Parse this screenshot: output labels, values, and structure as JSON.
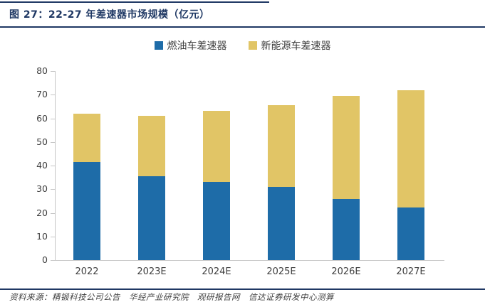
{
  "figure": {
    "title": "图 27：22-27 年差速器市场规模（亿元）",
    "source": "资料来源：精锻科技公司公告　华经产业研究院　观研报告网　信达证券研发中心测算"
  },
  "colors": {
    "accent_navy": "#1F3864",
    "fuel_blue": "#1E6CA8",
    "nev_yellow": "#E1C566",
    "axis_gray": "#C6C6C6",
    "label_gray": "#404040"
  },
  "chart_data": {
    "type": "bar",
    "stacked": true,
    "title": "22-27 年差速器市场规模（亿元）",
    "categories": [
      "2022",
      "2023E",
      "2024E",
      "2025E",
      "2026E",
      "2027E"
    ],
    "series": [
      {
        "name": "燃油车差速器",
        "color": "#1E6CA8",
        "values": [
          41.4,
          35.4,
          33.0,
          31.0,
          26.0,
          22.2
        ]
      },
      {
        "name": "新能源车差速器",
        "color": "#E1C566",
        "values": [
          20.5,
          25.7,
          30.2,
          34.7,
          43.4,
          49.7
        ]
      }
    ],
    "totals": [
      61.9,
      61.1,
      63.2,
      65.7,
      69.4,
      71.9
    ],
    "xlabel": "",
    "ylabel": "",
    "ylim": [
      0,
      80
    ],
    "ytick_step": 10,
    "ytick_labels": [
      "0",
      "10",
      "20",
      "30",
      "40",
      "50",
      "60",
      "70",
      "80"
    ],
    "grid": false,
    "legend_position": "top-center"
  }
}
